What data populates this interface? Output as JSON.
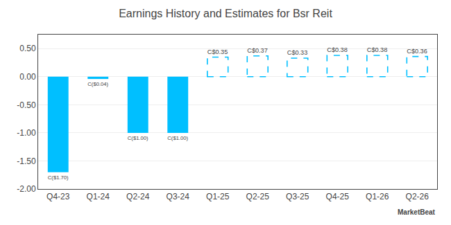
{
  "chart_data": {
    "type": "bar",
    "title": "Earnings History and Estimates for Bsr Reit",
    "categories": [
      "Q4-23",
      "Q1-24",
      "Q2-24",
      "Q3-24",
      "Q1-25",
      "Q2-25",
      "Q3-25",
      "Q4-25",
      "Q1-26",
      "Q2-26"
    ],
    "series": [
      {
        "color": "#00BFFF",
        "values": [
          -1.7,
          -0.04,
          -1.0,
          -1.0,
          null,
          null,
          null,
          null,
          null,
          null
        ],
        "value_labels": [
          "C($1.70)",
          "C($0.04)",
          "C($1.00)",
          "C($1.00)",
          null,
          null,
          null,
          null,
          null,
          null
        ]
      },
      {
        "color": "#00BFFF",
        "line_style": "dashed",
        "values": [
          null,
          null,
          null,
          null,
          0.35,
          0.37,
          0.33,
          0.38,
          0.38,
          0.36
        ],
        "value_labels": [
          null,
          null,
          null,
          null,
          "C$0.35",
          "C$0.37",
          "C$0.33",
          "C$0.38",
          "C$0.38",
          "C$0.36"
        ]
      }
    ],
    "data_labels": true,
    "ylim": [
      -2.0,
      0.75
    ],
    "yticks": [
      {
        "value": -2.0,
        "label": "-2.00"
      },
      {
        "value": -1.5,
        "label": "-1.50"
      },
      {
        "value": -1.0,
        "label": "-1.00"
      },
      {
        "value": -0.5,
        "label": "-0.50"
      },
      {
        "value": 0.0,
        "label": "0.00"
      },
      {
        "value": 0.5,
        "label": "0.50"
      }
    ],
    "grid": true,
    "annotations": [
      "MarketBeat"
    ]
  }
}
